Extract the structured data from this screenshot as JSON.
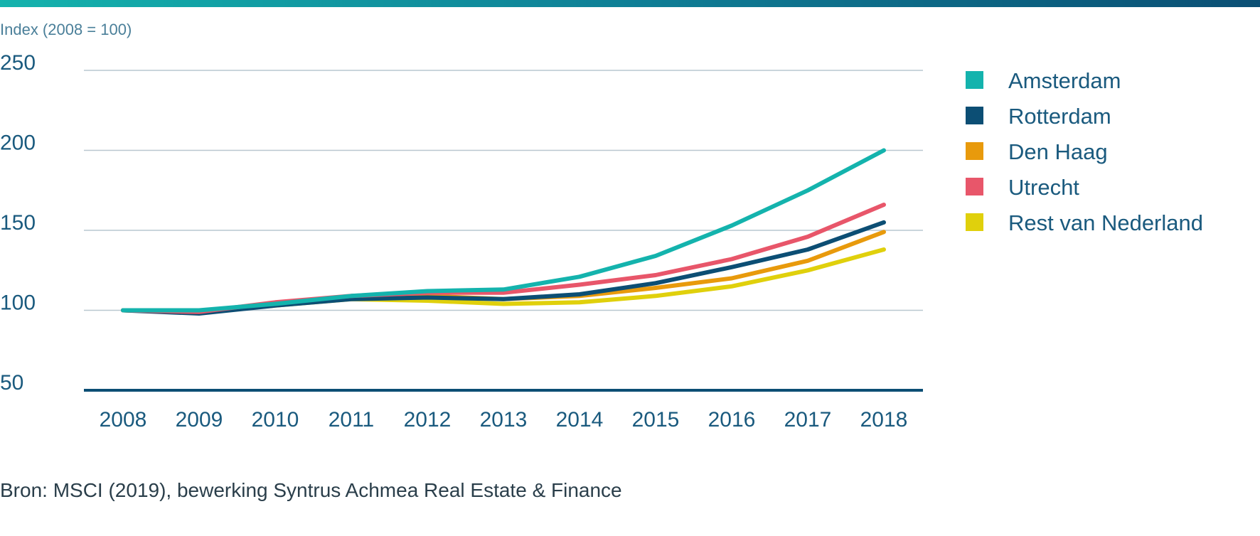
{
  "chart_data": {
    "type": "line",
    "ylabel": "Index (2008 = 100)",
    "x": [
      2008,
      2009,
      2010,
      2011,
      2012,
      2013,
      2014,
      2015,
      2016,
      2017,
      2018
    ],
    "ylim": [
      50,
      250
    ],
    "yticks": [
      250,
      200,
      150,
      100,
      50
    ],
    "grid": true,
    "legend_position": "right",
    "series": [
      {
        "name": "Amsterdam",
        "color": "#14b3ad",
        "values": [
          100,
          100,
          104,
          109,
          112,
          113,
          121,
          134,
          153,
          175,
          200
        ]
      },
      {
        "name": "Rotterdam",
        "color": "#0c4e74",
        "values": [
          100,
          98,
          103,
          107,
          108,
          107,
          110,
          117,
          127,
          138,
          155
        ]
      },
      {
        "name": "Den Haag",
        "color": "#e89a0c",
        "values": [
          100,
          99,
          104,
          108,
          109,
          107,
          109,
          114,
          120,
          131,
          149
        ]
      },
      {
        "name": "Utrecht",
        "color": "#e8566a",
        "values": [
          100,
          99,
          105,
          109,
          111,
          111,
          116,
          122,
          132,
          146,
          166
        ]
      },
      {
        "name": "Rest van Nederland",
        "color": "#e0d00c",
        "values": [
          100,
          99,
          103,
          107,
          106,
          104,
          105,
          109,
          115,
          125,
          138
        ]
      }
    ],
    "source": "Bron: MSCI (2019), bewerking Syntrus Achmea Real Estate & Finance"
  }
}
